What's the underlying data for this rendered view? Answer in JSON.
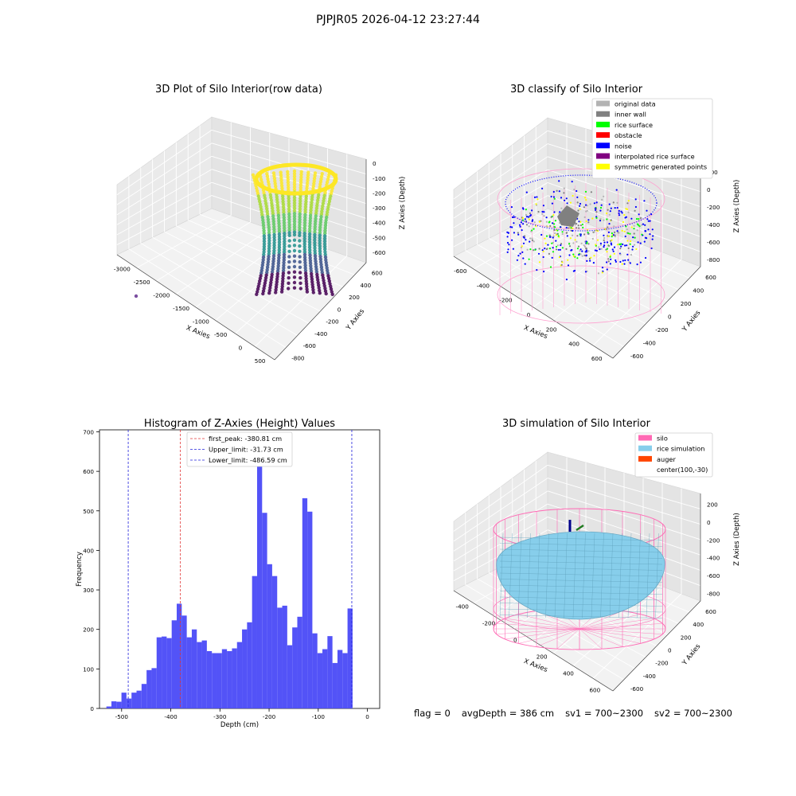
{
  "window": {
    "suptitle": "PJPJR05 2026-04-12 23:27:44"
  },
  "status": {
    "flag": "flag = 0",
    "avg_depth": "avgDepth = 386 cm",
    "sv1": "sv1 = 700~2300",
    "sv2": "sv2 = 700~2300"
  },
  "colors": {
    "hist_bar": "#4a4af7",
    "first_peak_line": "#e23a3a",
    "limit_line": "#2222dd",
    "silo_wire": "#ff69b4",
    "rice": "#87ceeb",
    "auger": "#ff4500"
  },
  "chart_data": [
    {
      "type": "scatter",
      "subtype": "3d",
      "title": "3D Plot of Silo Interior(row data)",
      "xlabel": "X Axies",
      "ylabel": "Y Axies",
      "zlabel": "Z Axies (Depth)",
      "x_ticks": [
        "-3000",
        "-2500",
        "-2000",
        "-1500",
        "-1000",
        "-500",
        "0",
        "500"
      ],
      "y_ticks": [
        "-800",
        "-600",
        "-400",
        "-200",
        "0",
        "200",
        "400",
        "600"
      ],
      "z_ticks": [
        "0",
        "-100",
        "-200",
        "-300",
        "-400",
        "-500",
        "-600"
      ],
      "colormap": "viridis",
      "grid": true
    },
    {
      "type": "scatter",
      "subtype": "3d",
      "title": "3D classify of Silo Interior",
      "xlabel": "X Axies",
      "ylabel": "Y Axies",
      "zlabel": "Z Axies (Depth)",
      "x_ticks": [
        "-600",
        "-400",
        "-200",
        "0",
        "200",
        "400",
        "600"
      ],
      "y_ticks": [
        "-600",
        "-400",
        "-200",
        "0",
        "200",
        "400",
        "600"
      ],
      "z_ticks": [
        "200",
        "0",
        "-200",
        "-400",
        "-600",
        "-800"
      ],
      "legend": [
        {
          "label": "original data",
          "color": "#b3b3b3"
        },
        {
          "label": "inner wall",
          "color": "#808080"
        },
        {
          "label": "rice surface",
          "color": "#00ff00"
        },
        {
          "label": "obstacle",
          "color": "#ff0000"
        },
        {
          "label": "noise",
          "color": "#0000ff"
        },
        {
          "label": "interpolated rice surface",
          "color": "#800080"
        },
        {
          "label": "symmetric generated points",
          "color": "#ffff00"
        }
      ],
      "legend_loc": "upper right",
      "grid": true
    },
    {
      "type": "bar",
      "subtype": "histogram",
      "title": "Histogram of Z-Axies (Height) Values",
      "xlabel": "Depth (cm)",
      "ylabel": "Frequency",
      "xlim": [
        -545,
        25
      ],
      "ylim": [
        0,
        705
      ],
      "x_ticks": [
        -500,
        -400,
        -300,
        -200,
        -100,
        0
      ],
      "y_ticks": [
        0,
        100,
        200,
        300,
        400,
        500,
        600,
        700
      ],
      "bin_start": -531,
      "bin_width": 10.22,
      "values": [
        5,
        18,
        17,
        40,
        25,
        40,
        45,
        62,
        97,
        102,
        180,
        182,
        178,
        223,
        265,
        235,
        180,
        200,
        168,
        172,
        145,
        140,
        140,
        150,
        145,
        152,
        168,
        200,
        218,
        335,
        670,
        495,
        365,
        335,
        255,
        260,
        160,
        205,
        232,
        532,
        498,
        190,
        140,
        150,
        183,
        115,
        148,
        140,
        253
      ],
      "lines": [
        {
          "label": "first_peak: -380.81 cm",
          "x": -380.81,
          "style": "dashed",
          "color": "red"
        },
        {
          "label": "Upper_limit: -31.73 cm",
          "x": -31.73,
          "style": "dashed",
          "color": "blue"
        },
        {
          "label": "Lower_limit: -486.59 cm",
          "x": -486.59,
          "style": "dashed",
          "color": "blue"
        }
      ],
      "legend_loc": "upper center"
    },
    {
      "type": "scatter",
      "subtype": "3d-surface",
      "title": "3D simulation of Silo Interior",
      "xlabel": "X Axies",
      "ylabel": "Y Axies",
      "zlabel": "Z Axies (Depth)",
      "x_ticks": [
        "-400",
        "-200",
        "0",
        "200",
        "400",
        "600"
      ],
      "y_ticks": [
        "-600",
        "-400",
        "-200",
        "0",
        "200",
        "400",
        "600"
      ],
      "z_ticks": [
        "200",
        "0",
        "-200",
        "-400",
        "-600",
        "-800"
      ],
      "legend": [
        {
          "label": "silo",
          "color": "#ff69b4"
        },
        {
          "label": "rice simulation",
          "color": "#87ceeb"
        },
        {
          "label": "auger",
          "color": "#ff4500"
        },
        {
          "label": "center(100,-30)",
          "color": ""
        }
      ],
      "legend_loc": "upper right",
      "grid": true
    }
  ]
}
